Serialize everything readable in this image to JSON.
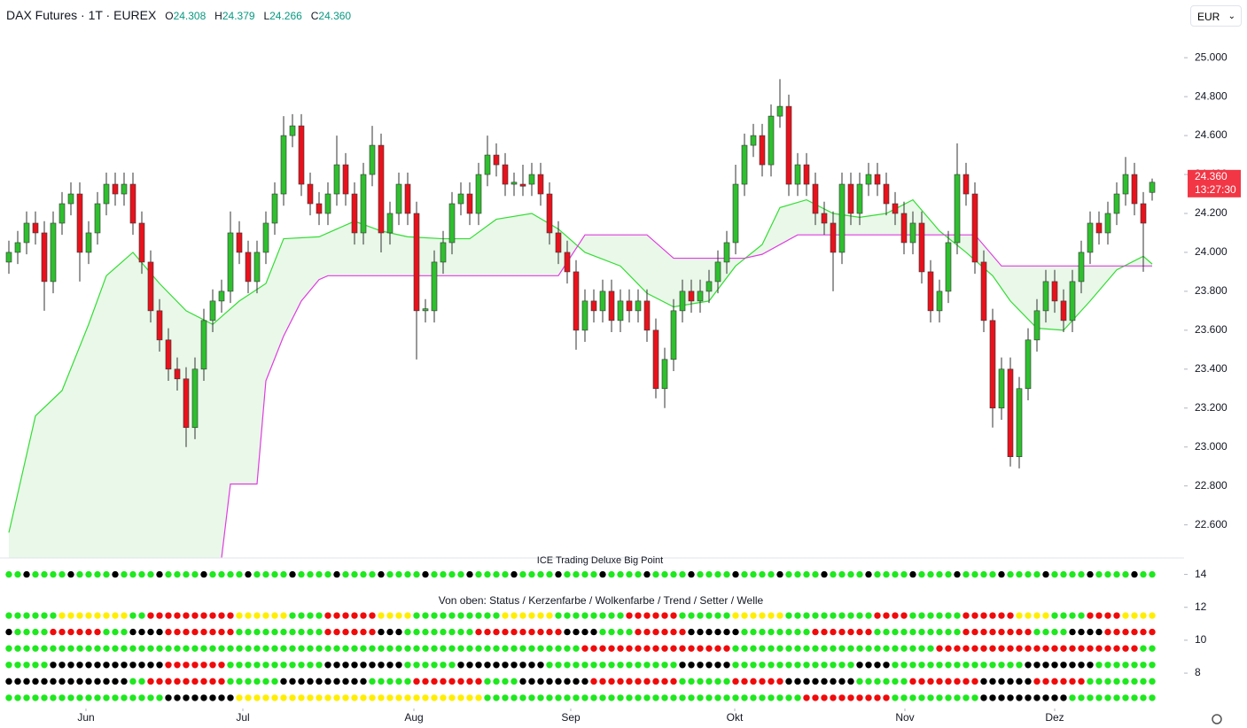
{
  "chart_data": [
    {
      "type": "candlestick",
      "title": "DAX Futures · 1T · EUREX",
      "ohlc_keys": [
        "O",
        "H",
        "L",
        "C"
      ],
      "ohlc_text": [
        "24.308",
        "24.379",
        "24.266",
        "24.360"
      ],
      "countdown": "13:27:30",
      "currency": "EUR",
      "up_color": "#2fbf2f",
      "down_color": "#e8121c",
      "tag_color": "#f23645",
      "ylim": [
        22430,
        25160
      ],
      "yticks": [
        {
          "value": 22600,
          "label": "22.600"
        },
        {
          "value": 22800,
          "label": "22.800"
        },
        {
          "value": 23000,
          "label": "23.000"
        },
        {
          "value": 23200,
          "label": "23.200"
        },
        {
          "value": 23400,
          "label": "23.400"
        },
        {
          "value": 23600,
          "label": "23.600"
        },
        {
          "value": 23800,
          "label": "23.800"
        },
        {
          "value": 24000,
          "label": "24.000"
        },
        {
          "value": 24200,
          "label": "24.200"
        },
        {
          "value": 24400,
          "label": "24.400"
        },
        {
          "value": 24600,
          "label": "24.600"
        },
        {
          "value": 24800,
          "label": "24.800"
        },
        {
          "value": 25000,
          "label": "25.000"
        }
      ],
      "xticks": [
        {
          "value": 8.7,
          "label": "Jun"
        },
        {
          "value": 26.4,
          "label": "Jul"
        },
        {
          "value": 45.7,
          "label": "Aug"
        },
        {
          "value": 63.4,
          "label": "Sep"
        },
        {
          "value": 81.9,
          "label": "Okt"
        },
        {
          "value": 101.1,
          "label": "Nov"
        },
        {
          "value": 118,
          "label": "Dez"
        }
      ],
      "candles": [
        [
          23950,
          24060,
          23890,
          24000
        ],
        [
          24000,
          24110,
          23940,
          24050
        ],
        [
          24050,
          24210,
          23990,
          24150
        ],
        [
          24150,
          24210,
          24040,
          24100
        ],
        [
          24100,
          24160,
          23700,
          23850
        ],
        [
          23850,
          24210,
          23790,
          24150
        ],
        [
          24150,
          24310,
          24090,
          24250
        ],
        [
          24250,
          24360,
          24190,
          24300
        ],
        [
          24300,
          24360,
          23850,
          24000
        ],
        [
          24000,
          24160,
          23940,
          24100
        ],
        [
          24100,
          24310,
          24040,
          24250
        ],
        [
          24250,
          24410,
          24190,
          24350
        ],
        [
          24350,
          24410,
          24240,
          24300
        ],
        [
          24300,
          24410,
          24240,
          24350
        ],
        [
          24350,
          24410,
          24090,
          24150
        ],
        [
          24150,
          24210,
          23890,
          23950
        ],
        [
          23950,
          24010,
          23640,
          23700
        ],
        [
          23700,
          23760,
          23490,
          23550
        ],
        [
          23550,
          23610,
          23340,
          23400
        ],
        [
          23400,
          23460,
          23290,
          23350
        ],
        [
          23350,
          23410,
          23000,
          23100
        ],
        [
          23100,
          23460,
          23040,
          23400
        ],
        [
          23400,
          23710,
          23340,
          23650
        ],
        [
          23650,
          23810,
          23590,
          23750
        ],
        [
          23750,
          23860,
          23690,
          23800
        ],
        [
          23800,
          24210,
          23740,
          24100
        ],
        [
          24100,
          24160,
          23940,
          24000
        ],
        [
          24000,
          24060,
          23790,
          23850
        ],
        [
          23850,
          24060,
          23790,
          24000
        ],
        [
          24000,
          24210,
          23940,
          24150
        ],
        [
          24150,
          24360,
          24090,
          24300
        ],
        [
          24300,
          24700,
          24240,
          24600
        ],
        [
          24600,
          24710,
          24540,
          24650
        ],
        [
          24650,
          24710,
          24290,
          24350
        ],
        [
          24350,
          24410,
          24190,
          24250
        ],
        [
          24250,
          24310,
          24140,
          24200
        ],
        [
          24200,
          24360,
          24140,
          24300
        ],
        [
          24300,
          24600,
          24240,
          24450
        ],
        [
          24450,
          24510,
          24240,
          24300
        ],
        [
          24300,
          24360,
          24040,
          24100
        ],
        [
          24100,
          24460,
          24040,
          24400
        ],
        [
          24400,
          24650,
          24340,
          24550
        ],
        [
          24550,
          24610,
          24000,
          24100
        ],
        [
          24100,
          24260,
          24040,
          24200
        ],
        [
          24200,
          24410,
          24140,
          24350
        ],
        [
          24350,
          24410,
          24140,
          24200
        ],
        [
          24200,
          24260,
          23450,
          23700
        ],
        [
          23700,
          23760,
          23640,
          23710
        ],
        [
          23700,
          24010,
          23640,
          23950
        ],
        [
          23950,
          24110,
          23890,
          24050
        ],
        [
          24050,
          24310,
          23990,
          24250
        ],
        [
          24250,
          24360,
          24190,
          24300
        ],
        [
          24300,
          24360,
          24140,
          24200
        ],
        [
          24200,
          24460,
          24140,
          24400
        ],
        [
          24400,
          24600,
          24340,
          24500
        ],
        [
          24500,
          24560,
          24390,
          24450
        ],
        [
          24450,
          24510,
          24290,
          24350
        ],
        [
          24350,
          24410,
          24290,
          24360
        ],
        [
          24350,
          24450,
          24290,
          24340
        ],
        [
          24350,
          24460,
          24290,
          24400
        ],
        [
          24400,
          24460,
          24240,
          24300
        ],
        [
          24300,
          24360,
          24040,
          24100
        ],
        [
          24100,
          24160,
          23940,
          24000
        ],
        [
          24000,
          24060,
          23840,
          23900
        ],
        [
          23900,
          23960,
          23500,
          23600
        ],
        [
          23600,
          23810,
          23540,
          23750
        ],
        [
          23750,
          23810,
          23640,
          23700
        ],
        [
          23700,
          23860,
          23640,
          23800
        ],
        [
          23800,
          23860,
          23590,
          23650
        ],
        [
          23650,
          23810,
          23590,
          23750
        ],
        [
          23750,
          23810,
          23640,
          23700
        ],
        [
          23700,
          23810,
          23640,
          23750
        ],
        [
          23750,
          23810,
          23540,
          23600
        ],
        [
          23600,
          23660,
          23250,
          23300
        ],
        [
          23300,
          23510,
          23200,
          23450
        ],
        [
          23450,
          23760,
          23390,
          23700
        ],
        [
          23700,
          23860,
          23640,
          23800
        ],
        [
          23800,
          23860,
          23690,
          23750
        ],
        [
          23750,
          23860,
          23690,
          23800
        ],
        [
          23800,
          23910,
          23740,
          23850
        ],
        [
          23850,
          24010,
          23790,
          23950
        ],
        [
          23950,
          24110,
          23890,
          24050
        ],
        [
          24050,
          24450,
          23990,
          24350
        ],
        [
          24350,
          24610,
          24290,
          24550
        ],
        [
          24550,
          24660,
          24490,
          24600
        ],
        [
          24600,
          24660,
          24390,
          24450
        ],
        [
          24450,
          24760,
          24390,
          24700
        ],
        [
          24700,
          24890,
          24640,
          24750
        ],
        [
          24750,
          24810,
          24290,
          24350
        ],
        [
          24350,
          24510,
          24290,
          24450
        ],
        [
          24450,
          24510,
          24290,
          24350
        ],
        [
          24350,
          24410,
          24140,
          24200
        ],
        [
          24200,
          24260,
          24090,
          24150
        ],
        [
          24150,
          24210,
          23800,
          24000
        ],
        [
          24000,
          24410,
          23940,
          24350
        ],
        [
          24350,
          24410,
          24140,
          24200
        ],
        [
          24200,
          24410,
          24140,
          24350
        ],
        [
          24350,
          24460,
          24290,
          24400
        ],
        [
          24400,
          24460,
          24290,
          24350
        ],
        [
          24350,
          24410,
          24190,
          24250
        ],
        [
          24250,
          24310,
          24140,
          24200
        ],
        [
          24200,
          24260,
          23990,
          24050
        ],
        [
          24050,
          24210,
          23990,
          24150
        ],
        [
          24150,
          24210,
          23840,
          23900
        ],
        [
          23900,
          23960,
          23640,
          23700
        ],
        [
          23700,
          23860,
          23640,
          23800
        ],
        [
          23800,
          24110,
          23740,
          24050
        ],
        [
          24050,
          24560,
          23990,
          24400
        ],
        [
          24400,
          24460,
          24240,
          24300
        ],
        [
          24300,
          24360,
          23890,
          23950
        ],
        [
          23950,
          24010,
          23590,
          23650
        ],
        [
          23650,
          23710,
          23100,
          23200
        ],
        [
          23200,
          23460,
          23140,
          23400
        ],
        [
          23400,
          23460,
          22900,
          22950
        ],
        [
          22950,
          23360,
          22890,
          23300
        ],
        [
          23300,
          23610,
          23240,
          23550
        ],
        [
          23550,
          23760,
          23490,
          23700
        ],
        [
          23700,
          23910,
          23640,
          23850
        ],
        [
          23850,
          23910,
          23690,
          23750
        ],
        [
          23750,
          23810,
          23590,
          23650
        ],
        [
          23650,
          23910,
          23590,
          23850
        ],
        [
          23850,
          24060,
          23790,
          24000
        ],
        [
          24000,
          24210,
          23940,
          24150
        ],
        [
          24150,
          24210,
          24040,
          24100
        ],
        [
          24100,
          24260,
          24040,
          24200
        ],
        [
          24200,
          24360,
          24140,
          24300
        ],
        [
          24300,
          24490,
          24240,
          24400
        ],
        [
          24400,
          24460,
          24190,
          24250
        ],
        [
          24250,
          24310,
          23900,
          24150
        ],
        [
          24308,
          24379,
          24266,
          24360
        ]
      ],
      "cloud_color": "#e9f8e9",
      "lines": [
        {
          "color": "#33dd33",
          "x": [
            0,
            3,
            6,
            9,
            11,
            14,
            17,
            20,
            23,
            26,
            29,
            31,
            35,
            39,
            42,
            45,
            49,
            52,
            55,
            59,
            62,
            65,
            69,
            72,
            75,
            79,
            82,
            85,
            87,
            90,
            93,
            96,
            99,
            102,
            105,
            108,
            111,
            113,
            116,
            119,
            122,
            125,
            128,
            129
          ],
          "values": [
            22560,
            23160,
            23290,
            23630,
            23880,
            24000,
            23840,
            23700,
            23630,
            23750,
            23840,
            24070,
            24080,
            24160,
            24110,
            24080,
            24070,
            24070,
            24170,
            24200,
            24120,
            24000,
            23930,
            23790,
            23720,
            23750,
            23930,
            24040,
            24230,
            24270,
            24200,
            24180,
            24200,
            24270,
            24110,
            24000,
            23880,
            23750,
            23610,
            23600,
            23750,
            23910,
            23980,
            23940
          ]
        },
        {
          "color": "#e03ce0",
          "x": [
            24,
            25,
            28,
            29,
            31,
            33,
            35,
            36,
            62,
            65,
            72,
            75,
            83,
            85,
            89,
            109,
            112,
            129
          ],
          "values": [
            22430,
            22810,
            22810,
            23340,
            23570,
            23750,
            23860,
            23880,
            23880,
            24090,
            24090,
            23970,
            23970,
            23990,
            24090,
            24090,
            23930,
            23930
          ]
        }
      ]
    },
    {
      "type": "dots",
      "title": "ICE Trading Deluxe Big Point",
      "subtitle": "Von oben: Status / Kerzenfarbe / Wolkenfarbe / Trend / Setter / Welle",
      "ylim": [
        5.85,
        15
      ],
      "yticks": [
        14,
        12,
        10,
        8
      ],
      "colors": {
        "g": "#1ee81e",
        "r": "#f00a0a",
        "k": "#000000",
        "y": "#ffee00"
      },
      "rows": [
        {
          "level": 14,
          "dots": "ggkggggkggggkggggkggggkggggkggggkggggkggggkggggkggggkggggkggggkggggkggggkggggkggggkggggkggggkggggkggggkggggkggggkggggkggggkggggkgg"
        },
        {
          "level": 11.5,
          "dots": "ggggggyyyyyyyyggrrrrrrrrrryyyyyyggggrrrrrryyyyggggggggggyyyyyyggggggggrrrrrrggggggyyyyyyggggggggggrrrrggggggrrrrrryyyyggggrrrryyyy"
        },
        {
          "level": 10.5,
          "dots": "kggggrrrrrrgggkkkkrrrrrrrrggggggggggrrrrrrkkkggggggggrrrrrrrrrrkkkkggggrrrrrrkkkkkkggggggggrrrrrrrggggggggggrrrrrrrrggggkkkkrrrrrr"
        },
        {
          "level": 9.5,
          "dots": "gggggggggggggggggggggggggggggggggggggggggggggggggggggggggggggggggrrrrrrrrrrrrrrrrrgggggggggggggggggggggggrrrrrrrrrrrrrrrrrrrrrrrgg"
        },
        {
          "level": 8.5,
          "dots": "gggggkkkkkkkkkkkkkrrrrrrrgggggggggggkkkkkkkkkggggggkkkkkkkkkkgggggggggggggggkkkkkkggggggggggggggkkkkgggggggggggggggkkkkkkkkggggggg"
        },
        {
          "level": 7.5,
          "dots": "kkkkkkkkkkkkkkggrrrrrrrrrggggggkkkkkkkkkkgggggrrrrrrrrggggkkkkkkkkrrrrrrrrrrggggggrrrrrrkkkkkkkkggggggrrrrrrrrkkkkkkrrrrrrgggggggg"
        },
        {
          "level": 6.5,
          "dots": "ggggggggggggggggggkkkkkkkkyyyyyyyyyyyyyyyyyyyyyyyyyyyyggggggggggggggggggggggggggggggggggggrrrrrrrrrrggggggggggkkkkkkkkkkgggggggggg"
        }
      ]
    }
  ]
}
